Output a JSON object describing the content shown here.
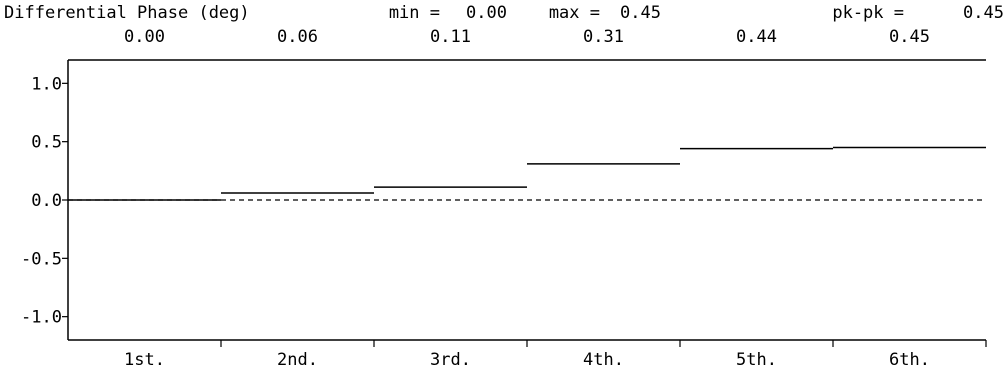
{
  "header": {
    "title": "Differential Phase (deg)",
    "min_label": "min =",
    "min_value": "0.00",
    "max_label": "max =",
    "max_value": "0.45",
    "pkpk_label": "pk-pk =",
    "pkpk_value": "0.45"
  },
  "chart_data": {
    "type": "line",
    "title": "Differential Phase (deg)",
    "categories": [
      "1st.",
      "2nd.",
      "3rd.",
      "4th.",
      "5th.",
      "6th."
    ],
    "values": [
      0.0,
      0.06,
      0.11,
      0.31,
      0.44,
      0.45
    ],
    "value_labels": [
      "0.00",
      "0.06",
      "0.11",
      "0.31",
      "0.44",
      "0.45"
    ],
    "yticks": [
      1.0,
      0.5,
      0.0,
      -0.5,
      -1.0
    ],
    "ytick_labels": [
      "1.0",
      "0.5",
      "0.0",
      "-0.5",
      "-1.0"
    ],
    "ylim": [
      -1.2,
      1.2
    ],
    "zero_reference": 0.0,
    "grid": false,
    "line_style": "step"
  },
  "colors": {
    "background": "#ffffff",
    "foreground": "#000000"
  }
}
